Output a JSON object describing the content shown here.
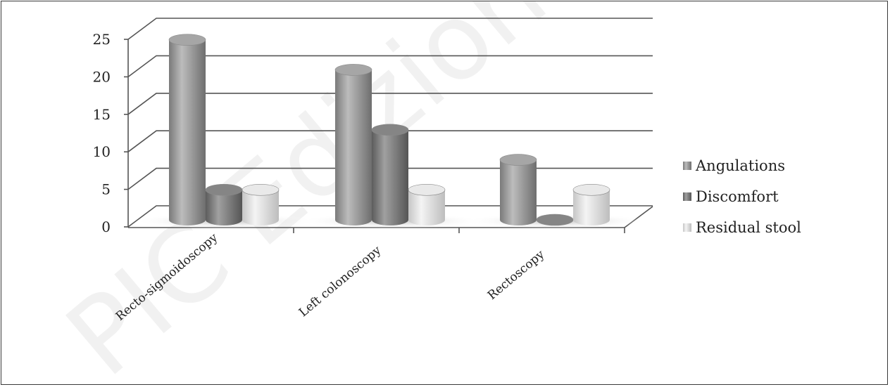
{
  "chart_data": {
    "type": "bar",
    "style": "3d-cylinder",
    "categories": [
      "Recto-sigmoidoscopy",
      "Left colonoscopy",
      "Rectoscopy"
    ],
    "series": [
      {
        "name": "Angulations",
        "values": [
          24,
          20,
          8
        ],
        "color": "#9a9a9a"
      },
      {
        "name": "Discomfort",
        "values": [
          4,
          12,
          0
        ],
        "color": "#7d7d7d"
      },
      {
        "name": "Residual stool",
        "values": [
          4,
          4,
          4
        ],
        "color": "#dcdcdc"
      }
    ],
    "yticks": [
      0,
      5,
      10,
      15,
      20,
      25
    ],
    "ylim": [
      0,
      25
    ],
    "grid": true,
    "legend": "right"
  },
  "watermark": "PIC Edizioni In"
}
